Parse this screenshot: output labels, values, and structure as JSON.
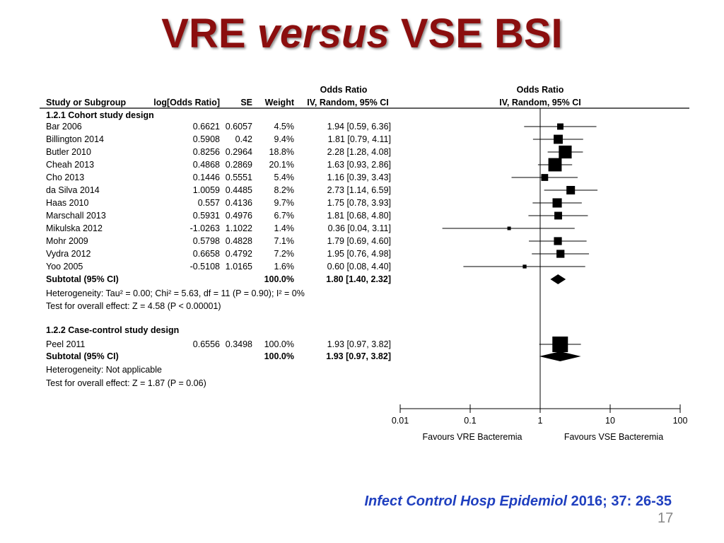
{
  "slide": {
    "title_part1": "VRE ",
    "title_italic": "versus",
    "title_part2": " VSE BSI",
    "citation_journal": "Infect Control Hosp Epidemiol",
    "citation_rest": " 2016; 37: 26-35",
    "slide_number": "17"
  },
  "headers": {
    "col_effect_top": "Odds Ratio",
    "col_effect_bottom": "IV, Random, 95% CI",
    "plot_top": "Odds Ratio",
    "plot_bottom": "IV, Random, 95% CI",
    "study": "Study or Subgroup",
    "logor": "log[Odds Ratio]",
    "se": "SE",
    "weight": "Weight"
  },
  "chart_data": {
    "type": "forest",
    "x_scale": "log",
    "xlim": [
      0.01,
      100
    ],
    "ticks": [
      {
        "value": 0.01,
        "label": "0.01"
      },
      {
        "value": 0.1,
        "label": "0.1"
      },
      {
        "value": 1,
        "label": "1"
      },
      {
        "value": 10,
        "label": "10"
      },
      {
        "value": 100,
        "label": "100"
      }
    ],
    "favours_left": "Favours VRE Bacteremia",
    "favours_right": "Favours VSE Bacteremia",
    "groups": [
      {
        "name": "1.2.1 Cohort study design",
        "studies": [
          {
            "study": "Bar 2006",
            "logor": "0.6621",
            "se": "0.6057",
            "weight": "4.5%",
            "ci_text": "1.94 [0.59, 6.36]",
            "or": 1.94,
            "lo": 0.59,
            "hi": 6.36,
            "w": 4.5
          },
          {
            "study": "Billington 2014",
            "logor": "0.5908",
            "se": "0.42",
            "weight": "9.4%",
            "ci_text": "1.81 [0.79, 4.11]",
            "or": 1.81,
            "lo": 0.79,
            "hi": 4.11,
            "w": 9.4
          },
          {
            "study": "Butler 2010",
            "logor": "0.8256",
            "se": "0.2964",
            "weight": "18.8%",
            "ci_text": "2.28 [1.28, 4.08]",
            "or": 2.28,
            "lo": 1.28,
            "hi": 4.08,
            "w": 18.8
          },
          {
            "study": "Cheah 2013",
            "logor": "0.4868",
            "se": "0.2869",
            "weight": "20.1%",
            "ci_text": "1.63 [0.93, 2.86]",
            "or": 1.63,
            "lo": 0.93,
            "hi": 2.86,
            "w": 20.1
          },
          {
            "study": "Cho 2013",
            "logor": "0.1446",
            "se": "0.5551",
            "weight": "5.4%",
            "ci_text": "1.16 [0.39, 3.43]",
            "or": 1.16,
            "lo": 0.39,
            "hi": 3.43,
            "w": 5.4
          },
          {
            "study": "da Silva 2014",
            "logor": "1.0059",
            "se": "0.4485",
            "weight": "8.2%",
            "ci_text": "2.73 [1.14, 6.59]",
            "or": 2.73,
            "lo": 1.14,
            "hi": 6.59,
            "w": 8.2
          },
          {
            "study": "Haas 2010",
            "logor": "0.557",
            "se": "0.4136",
            "weight": "9.7%",
            "ci_text": "1.75 [0.78, 3.93]",
            "or": 1.75,
            "lo": 0.78,
            "hi": 3.93,
            "w": 9.7
          },
          {
            "study": "Marschall 2013",
            "logor": "0.5931",
            "se": "0.4976",
            "weight": "6.7%",
            "ci_text": "1.81 [0.68, 4.80]",
            "or": 1.81,
            "lo": 0.68,
            "hi": 4.8,
            "w": 6.7
          },
          {
            "study": "Mikulska 2012",
            "logor": "-1.0263",
            "se": "1.1022",
            "weight": "1.4%",
            "ci_text": "0.36 [0.04, 3.11]",
            "or": 0.36,
            "lo": 0.04,
            "hi": 3.11,
            "w": 1.4
          },
          {
            "study": "Mohr 2009",
            "logor": "0.5798",
            "se": "0.4828",
            "weight": "7.1%",
            "ci_text": "1.79 [0.69, 4.60]",
            "or": 1.79,
            "lo": 0.69,
            "hi": 4.6,
            "w": 7.1
          },
          {
            "study": "Vydra 2012",
            "logor": "0.6658",
            "se": "0.4792",
            "weight": "7.2%",
            "ci_text": "1.95 [0.76, 4.98]",
            "or": 1.95,
            "lo": 0.76,
            "hi": 4.98,
            "w": 7.2
          },
          {
            "study": "Yoo 2005",
            "logor": "-0.5108",
            "se": "1.0165",
            "weight": "1.6%",
            "ci_text": "0.60 [0.08, 4.40]",
            "or": 0.6,
            "lo": 0.08,
            "hi": 4.4,
            "w": 1.6
          }
        ],
        "subtotal": {
          "label": "Subtotal (95% CI)",
          "weight": "100.0%",
          "ci_text": "1.80 [1.40, 2.32]",
          "or": 1.8,
          "lo": 1.4,
          "hi": 2.32
        },
        "heterogeneity": "Heterogeneity: Tau² = 0.00; Chi² = 5.63, df = 11 (P = 0.90); I² = 0%",
        "overall_effect": "Test for overall effect: Z = 4.58 (P < 0.00001)"
      },
      {
        "name": "1.2.2 Case-control study design",
        "studies": [
          {
            "study": "Peel 2011",
            "logor": "0.6556",
            "se": "0.3498",
            "weight": "100.0%",
            "ci_text": "1.93 [0.97, 3.82]",
            "or": 1.93,
            "lo": 0.97,
            "hi": 3.82,
            "w": 100.0
          }
        ],
        "subtotal": {
          "label": "Subtotal (95% CI)",
          "weight": "100.0%",
          "ci_text": "1.93 [0.97, 3.82]",
          "or": 1.93,
          "lo": 0.97,
          "hi": 3.82
        },
        "heterogeneity": "Heterogeneity: Not applicable",
        "overall_effect": "Test for overall effect: Z = 1.87 (P = 0.06)"
      }
    ]
  }
}
